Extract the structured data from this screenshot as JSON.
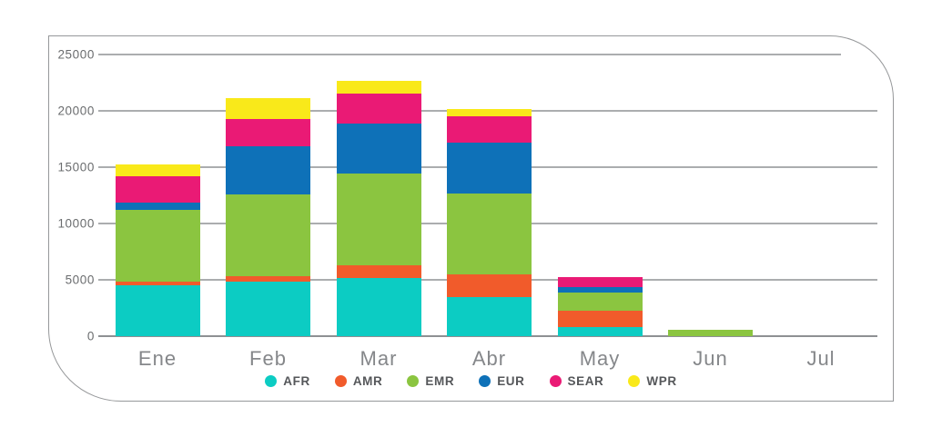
{
  "chart_data": {
    "type": "bar",
    "stacked": true,
    "title": "",
    "xlabel": "",
    "ylabel": "",
    "categories": [
      "Ene",
      "Feb",
      "Mar",
      "Abr",
      "May",
      "Jun",
      "Jul"
    ],
    "series": [
      {
        "name": "AFR",
        "color": "#0cccc3",
        "values": [
          4500,
          4800,
          5200,
          3450,
          800,
          0,
          0
        ]
      },
      {
        "name": "AMR",
        "color": "#f15b2b",
        "values": [
          350,
          550,
          1100,
          2050,
          1450,
          0,
          0
        ]
      },
      {
        "name": "EMR",
        "color": "#8bc540",
        "values": [
          6350,
          7200,
          8100,
          7200,
          1650,
          600,
          0
        ]
      },
      {
        "name": "EUR",
        "color": "#0e71b8",
        "values": [
          650,
          4300,
          4450,
          4500,
          450,
          0,
          0
        ]
      },
      {
        "name": "SEAR",
        "color": "#ea1a75",
        "values": [
          2350,
          2450,
          2650,
          2350,
          900,
          0,
          0
        ]
      },
      {
        "name": "WPR",
        "color": "#f9e91a",
        "values": [
          1050,
          1800,
          1150,
          600,
          0,
          0,
          0
        ]
      }
    ],
    "totals": [
      15250,
      21100,
      22650,
      20150,
      5250,
      600,
      0
    ],
    "ylim": [
      0,
      25000
    ],
    "yticks": [
      0,
      5000,
      10000,
      15000,
      20000,
      25000
    ],
    "ytick_labels": [
      "0",
      "5000",
      "10000",
      "15000",
      "20000",
      "25000"
    ],
    "grid": true,
    "legend_position": "bottom",
    "colors": {
      "gridline": "#abadaf",
      "axis_text": "#6a6c6e",
      "month_text": "#85878a",
      "legend_text": "#55575a",
      "card_border": "#96989a",
      "background": "#ffffff"
    }
  }
}
